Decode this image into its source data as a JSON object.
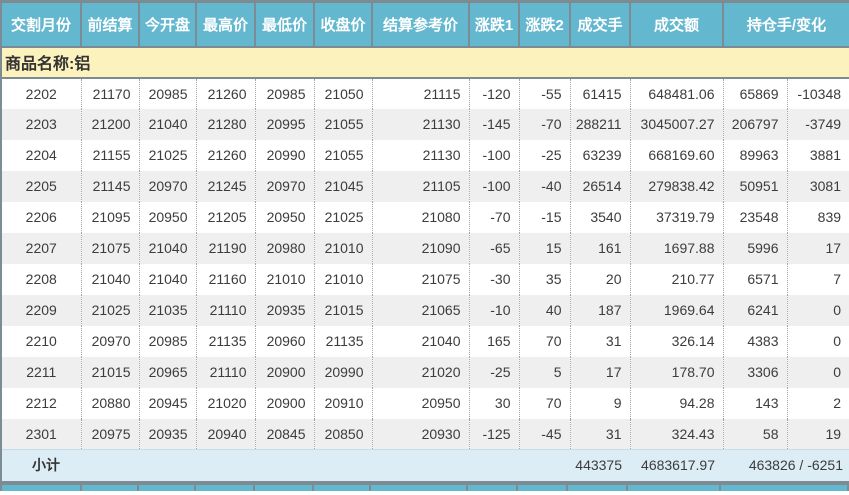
{
  "table": {
    "columns": [
      "交割月份",
      "前结算",
      "今开盘",
      "最高价",
      "最低价",
      "收盘价",
      "结算参考价",
      "涨跌1",
      "涨跌2",
      "成交手",
      "成交额",
      "持仓手/变化"
    ],
    "commodity_label": "商品名称:铝",
    "rows": [
      [
        "2202",
        "21170",
        "20985",
        "21260",
        "20985",
        "21050",
        "21115",
        "-120",
        "-55",
        "61415",
        "648481.06",
        "65869",
        "-10348"
      ],
      [
        "2203",
        "21200",
        "21040",
        "21280",
        "20995",
        "21055",
        "21130",
        "-145",
        "-70",
        "288211",
        "3045007.27",
        "206797",
        "-3749"
      ],
      [
        "2204",
        "21155",
        "21025",
        "21260",
        "20990",
        "21055",
        "21130",
        "-100",
        "-25",
        "63239",
        "668169.60",
        "89963",
        "3881"
      ],
      [
        "2205",
        "21145",
        "20970",
        "21245",
        "20970",
        "21045",
        "21105",
        "-100",
        "-40",
        "26514",
        "279838.42",
        "50951",
        "3081"
      ],
      [
        "2206",
        "21095",
        "20950",
        "21205",
        "20950",
        "21025",
        "21080",
        "-70",
        "-15",
        "3540",
        "37319.79",
        "23548",
        "839"
      ],
      [
        "2207",
        "21075",
        "21040",
        "21190",
        "20980",
        "21010",
        "21090",
        "-65",
        "15",
        "161",
        "1697.88",
        "5996",
        "17"
      ],
      [
        "2208",
        "21040",
        "21040",
        "21160",
        "21010",
        "21010",
        "21075",
        "-30",
        "35",
        "20",
        "210.77",
        "6571",
        "7"
      ],
      [
        "2209",
        "21025",
        "21035",
        "21110",
        "20935",
        "21015",
        "21065",
        "-10",
        "40",
        "187",
        "1969.64",
        "6241",
        "0"
      ],
      [
        "2210",
        "20970",
        "20985",
        "21135",
        "20960",
        "21135",
        "21040",
        "165",
        "70",
        "31",
        "326.14",
        "4383",
        "0"
      ],
      [
        "2211",
        "21015",
        "20965",
        "21110",
        "20900",
        "20990",
        "21020",
        "-25",
        "5",
        "17",
        "178.70",
        "3306",
        "0"
      ],
      [
        "2212",
        "20880",
        "20945",
        "21020",
        "20900",
        "20910",
        "20950",
        "30",
        "70",
        "9",
        "94.28",
        "143",
        "2"
      ],
      [
        "2301",
        "20975",
        "20935",
        "20940",
        "20845",
        "20850",
        "20930",
        "-125",
        "-45",
        "31",
        "324.43",
        "58",
        "19"
      ]
    ],
    "subtotal": {
      "label": "小计",
      "volume": "443375",
      "turnover": "4683617.97",
      "oi_combined": "463826 / -6251"
    }
  },
  "colors": {
    "header_bg": "#63b7ce",
    "border": "#7c8c92",
    "stripe": "#efefef",
    "commodity_bg": "#fbf2be",
    "subtotal_bg": "#dcedf6",
    "text": "#3c3c3c"
  }
}
